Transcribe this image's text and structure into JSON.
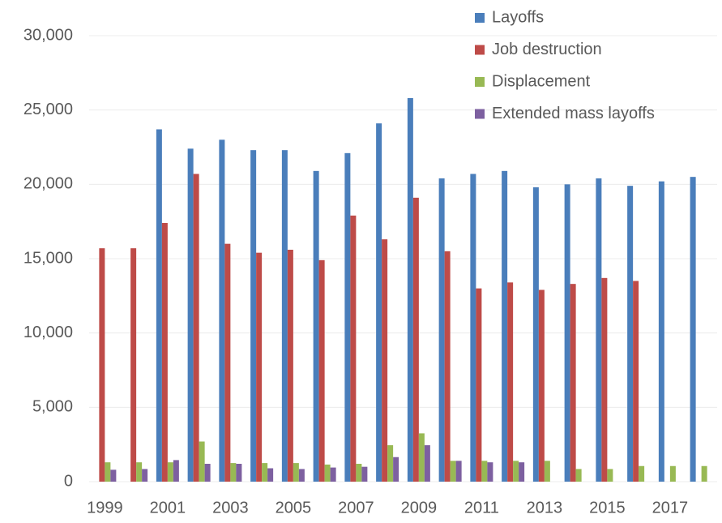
{
  "chart_data": {
    "type": "bar",
    "categories": [
      "1999",
      null,
      "2001",
      null,
      "2003",
      null,
      "2005",
      null,
      "2007",
      null,
      "2009",
      null,
      "2011",
      null,
      "2013",
      null,
      "2015",
      null,
      "2017",
      null
    ],
    "series": [
      {
        "name": "Layoffs",
        "color": "#4a7ebb",
        "values": [
          null,
          null,
          23700,
          22400,
          23000,
          22300,
          22300,
          20900,
          22100,
          24100,
          25800,
          20400,
          20700,
          20900,
          19800,
          20000,
          20400,
          19900,
          20200,
          20500
        ]
      },
      {
        "name": "Job destruction",
        "color": "#be4b48",
        "values": [
          15700,
          15700,
          17400,
          20700,
          16000,
          15400,
          15600,
          14900,
          17900,
          16300,
          19100,
          15500,
          13000,
          13400,
          12900,
          13300,
          13700,
          13500,
          null,
          null
        ]
      },
      {
        "name": "Displacement",
        "color": "#98b954",
        "values": [
          1300,
          1300,
          1300,
          2700,
          1250,
          1250,
          1250,
          1150,
          1200,
          2450,
          3250,
          1400,
          1400,
          1400,
          1400,
          850,
          850,
          1050,
          1050,
          1050
        ]
      },
      {
        "name": "Extended mass layoffs",
        "color": "#7d60a0",
        "values": [
          800,
          850,
          1450,
          1200,
          1200,
          900,
          850,
          950,
          1000,
          1650,
          2450,
          1400,
          1300,
          1300,
          null,
          null,
          null,
          null,
          null,
          null
        ]
      }
    ],
    "ylim": [
      0,
      30000
    ],
    "yticks": [
      0,
      {
        "value": 5000,
        "label": "5,000"
      },
      {
        "value": 10000,
        "label": "10,000"
      },
      {
        "value": 15000,
        "label": "15,000"
      },
      {
        "value": 20000,
        "label": "20,000"
      },
      {
        "value": 25000,
        "label": "25,000"
      },
      {
        "value": 30000,
        "label": "30,000"
      }
    ],
    "grid": true,
    "legend": "top-right"
  }
}
